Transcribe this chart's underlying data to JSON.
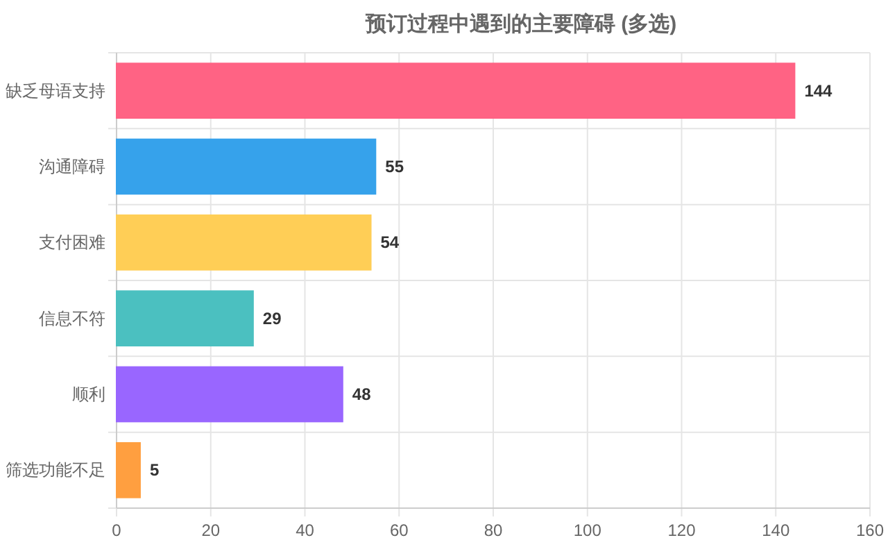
{
  "chart_data": {
    "type": "bar",
    "orientation": "horizontal",
    "title": "预订过程中遇到的主要障碍 (多选)",
    "categories": [
      "缺乏母语支持",
      "沟通障碍",
      "支付困难",
      "信息不符",
      "顺利",
      "筛选功能不足"
    ],
    "values": [
      144,
      55,
      54,
      29,
      48,
      5
    ],
    "colors": [
      "#ff6384",
      "#36a2eb",
      "#ffce56",
      "#4bc0c0",
      "#9966ff",
      "#ff9f40"
    ],
    "xlim": [
      0,
      160
    ],
    "xticks": [
      0,
      20,
      40,
      60,
      80,
      100,
      120,
      140,
      160
    ],
    "grid": true,
    "data_labels": true
  }
}
